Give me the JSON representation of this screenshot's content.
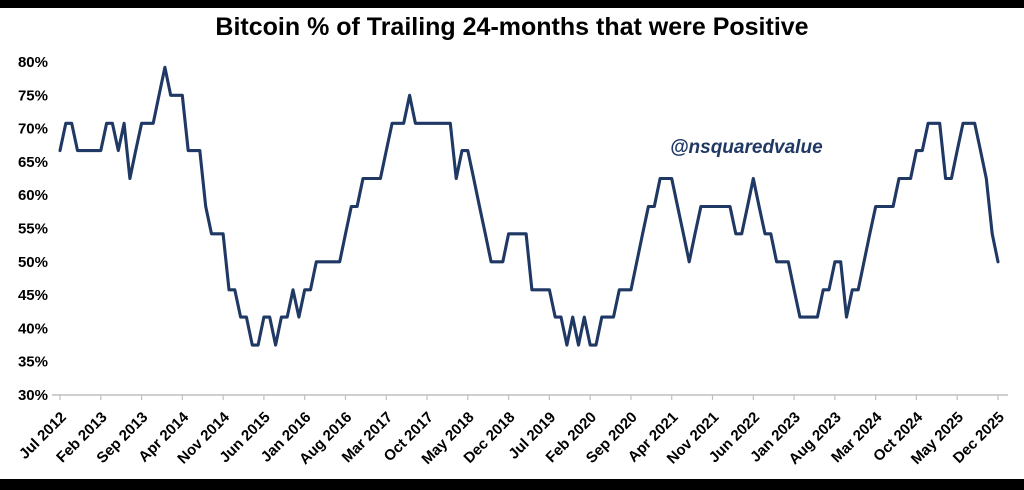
{
  "chart_data": {
    "type": "line",
    "title": "Bitcoin % of Trailing 24-months that were Positive",
    "watermark": "@nsquaredvalue",
    "xlabel": "",
    "ylabel": "",
    "grid": false,
    "legend": "none",
    "ylim": [
      30,
      80
    ],
    "y_ticks": [
      "30%",
      "35%",
      "40%",
      "45%",
      "50%",
      "55%",
      "60%",
      "65%",
      "70%",
      "75%",
      "80%"
    ],
    "x_freq": "monthly",
    "x_start": "Jul 2012",
    "x_end": "Dec 2025",
    "x_tick_interval": 7,
    "x_tick_labels": [
      "Jul 2012",
      "Feb 2013",
      "Sep 2013",
      "Apr 2014",
      "Nov 2014",
      "Jun 2015",
      "Jan 2016",
      "Aug 2016",
      "Mar 2017",
      "Oct 2017",
      "May 2018",
      "Dec 2018",
      "Jul 2019",
      "Feb 2020",
      "Sep 2020",
      "Apr 2021",
      "Nov 2021",
      "Jun 2022",
      "Jan 2023",
      "Aug 2023",
      "Mar 2024",
      "Oct 2024",
      "May 2025",
      "Dec 2025"
    ],
    "line_color": "#1f3864",
    "axis_color": "#bfbfbf",
    "series": [
      {
        "name": "% of trailing 24 months that were positive",
        "values": [
          66.7,
          70.8,
          70.8,
          66.7,
          66.7,
          66.7,
          66.7,
          66.7,
          70.8,
          70.8,
          66.7,
          70.8,
          62.5,
          66.7,
          70.8,
          70.8,
          70.8,
          75.0,
          79.2,
          75.0,
          75.0,
          75.0,
          66.7,
          66.7,
          66.7,
          58.3,
          54.2,
          54.2,
          54.2,
          45.8,
          45.8,
          41.7,
          41.7,
          37.5,
          37.5,
          41.7,
          41.7,
          37.5,
          41.7,
          41.7,
          45.8,
          41.7,
          45.8,
          45.8,
          50.0,
          50.0,
          50.0,
          50.0,
          50.0,
          54.2,
          58.3,
          58.3,
          62.5,
          62.5,
          62.5,
          62.5,
          66.7,
          70.8,
          70.8,
          70.8,
          75.0,
          70.8,
          70.8,
          70.8,
          70.8,
          70.8,
          70.8,
          70.8,
          62.5,
          66.7,
          66.7,
          62.5,
          58.3,
          54.2,
          50.0,
          50.0,
          50.0,
          54.2,
          54.2,
          54.2,
          54.2,
          45.8,
          45.8,
          45.8,
          45.8,
          41.7,
          41.7,
          37.5,
          41.7,
          37.5,
          41.7,
          37.5,
          37.5,
          41.7,
          41.7,
          41.7,
          45.8,
          45.8,
          45.8,
          50.0,
          54.2,
          58.3,
          58.3,
          62.5,
          62.5,
          62.5,
          58.3,
          54.2,
          50.0,
          54.2,
          58.3,
          58.3,
          58.3,
          58.3,
          58.3,
          58.3,
          54.2,
          54.2,
          58.3,
          62.5,
          58.3,
          54.2,
          54.2,
          50.0,
          50.0,
          50.0,
          45.8,
          41.7,
          41.7,
          41.7,
          41.7,
          45.8,
          45.8,
          50.0,
          50.0,
          41.7,
          45.8,
          45.8,
          50.0,
          54.2,
          58.3,
          58.3,
          58.3,
          58.3,
          62.5,
          62.5,
          62.5,
          66.7,
          66.7,
          70.8,
          70.8,
          70.8,
          62.5,
          62.5,
          66.7,
          70.8,
          70.8,
          70.8,
          66.7,
          62.5,
          54.2,
          50.0
        ]
      }
    ]
  }
}
